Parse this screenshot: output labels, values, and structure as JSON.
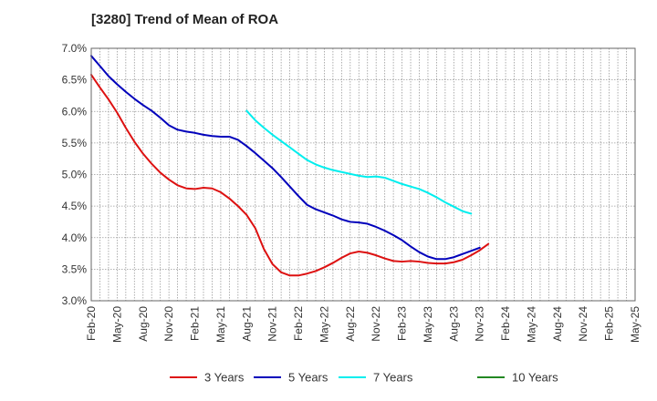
{
  "chart_data": {
    "type": "line",
    "title": "[3280]  Trend of Mean of ROA",
    "xlabel": "",
    "ylabel": "",
    "ylim": [
      3.0,
      7.0
    ],
    "y_ticks": [
      3.0,
      3.5,
      4.0,
      4.5,
      5.0,
      5.5,
      6.0,
      6.5,
      7.0
    ],
    "y_tick_labels": [
      "3.0%",
      "3.5%",
      "4.0%",
      "4.5%",
      "5.0%",
      "5.5%",
      "6.0%",
      "6.5%",
      "7.0%"
    ],
    "x_tick_labels": [
      "Feb-20",
      "May-20",
      "Aug-20",
      "Nov-20",
      "Feb-21",
      "May-21",
      "Aug-21",
      "Nov-21",
      "Feb-22",
      "May-22",
      "Aug-22",
      "Nov-22",
      "Feb-23",
      "May-23",
      "Aug-23",
      "Nov-23",
      "Feb-24",
      "May-24",
      "Aug-24",
      "Nov-24",
      "Feb-25",
      "May-25"
    ],
    "grid": true,
    "legend_position": "bottom",
    "series": [
      {
        "name": "3 Years",
        "color": "#dd1111",
        "start_index": 0,
        "values": [
          6.58,
          6.38,
          6.19,
          5.98,
          5.74,
          5.52,
          5.33,
          5.17,
          5.03,
          4.92,
          4.83,
          4.78,
          4.77,
          4.79,
          4.78,
          4.72,
          4.62,
          4.5,
          4.36,
          4.15,
          3.82,
          3.58,
          3.45,
          3.4,
          3.4,
          3.43,
          3.47,
          3.53,
          3.6,
          3.68,
          3.75,
          3.78,
          3.76,
          3.72,
          3.67,
          3.63,
          3.62,
          3.63,
          3.62,
          3.6,
          3.59,
          3.59,
          3.61,
          3.65,
          3.72,
          3.8,
          3.9
        ]
      },
      {
        "name": "5 Years",
        "color": "#0000bb",
        "start_index": 0,
        "values": [
          6.88,
          6.72,
          6.56,
          6.43,
          6.31,
          6.2,
          6.1,
          6.01,
          5.9,
          5.78,
          5.71,
          5.68,
          5.66,
          5.63,
          5.61,
          5.6,
          5.6,
          5.55,
          5.45,
          5.34,
          5.22,
          5.1,
          4.96,
          4.81,
          4.66,
          4.52,
          4.45,
          4.4,
          4.35,
          4.29,
          4.25,
          4.24,
          4.22,
          4.17,
          4.11,
          4.04,
          3.96,
          3.86,
          3.77,
          3.7,
          3.66,
          3.66,
          3.69,
          3.74,
          3.79,
          3.84
        ]
      },
      {
        "name": "7 Years",
        "color": "#00eeee",
        "start_index": 18,
        "values": [
          6.01,
          5.86,
          5.74,
          5.63,
          5.53,
          5.43,
          5.33,
          5.23,
          5.16,
          5.11,
          5.07,
          5.04,
          5.01,
          4.98,
          4.96,
          4.97,
          4.95,
          4.9,
          4.85,
          4.81,
          4.77,
          4.71,
          4.64,
          4.56,
          4.49,
          4.42,
          4.38
        ]
      },
      {
        "name": "10 Years",
        "color": "#228822",
        "start_index": 0,
        "values": []
      }
    ]
  }
}
